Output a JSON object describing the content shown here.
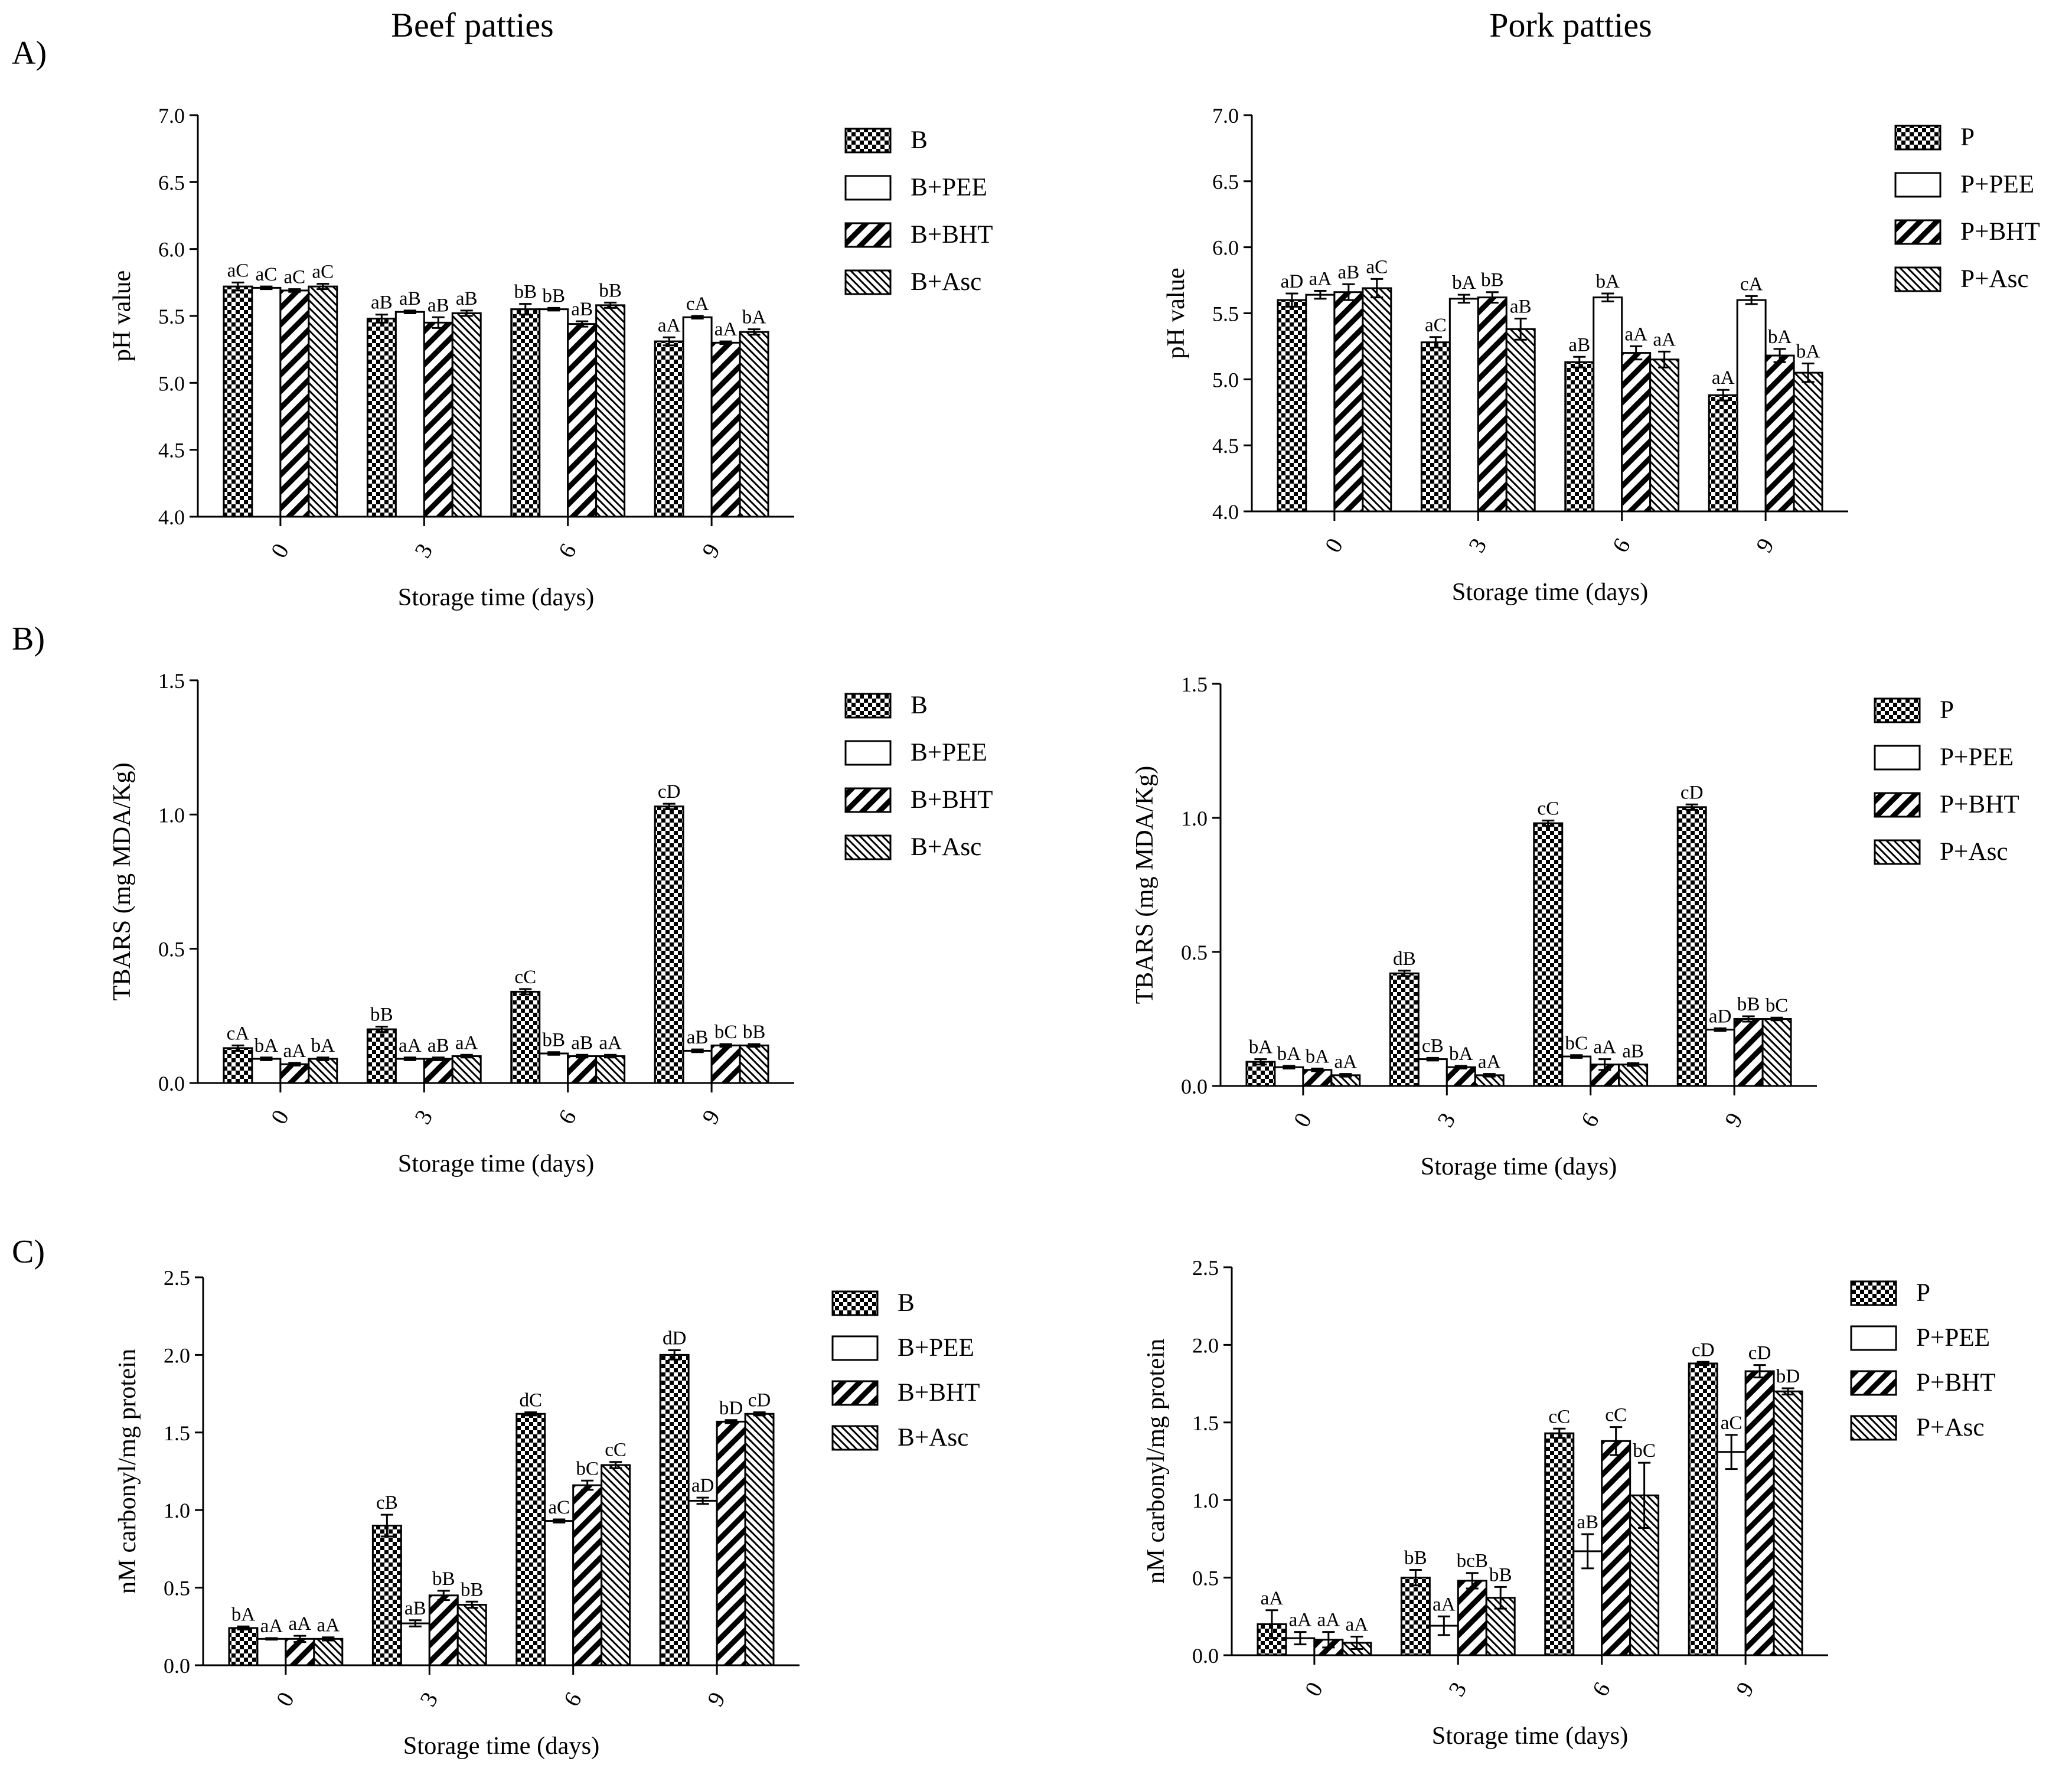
{
  "panel_labels": [
    "A)",
    "B)",
    "C)"
  ],
  "column_titles": [
    "Beef patties",
    "Pork patties"
  ],
  "chart_data": [
    {
      "id": "A-beef",
      "type": "bar",
      "title": "",
      "xlabel": "Storage time (days)",
      "ylabel": "pH value",
      "ylim": [
        4.0,
        7.0
      ],
      "yticks": [
        "4.0",
        "4.5",
        "5.0",
        "5.5",
        "6.0",
        "6.5",
        "7.0"
      ],
      "categories": [
        "0",
        "3",
        "6",
        "9"
      ],
      "series": [
        {
          "name": "B",
          "values": [
            5.72,
            5.48,
            5.55,
            5.31
          ],
          "errors": [
            0.03,
            0.03,
            0.04,
            0.03
          ],
          "labels": [
            "aC",
            "aB",
            "bB",
            "aA"
          ]
        },
        {
          "name": "B+PEE",
          "values": [
            5.71,
            5.53,
            5.55,
            5.49
          ],
          "errors": [
            0.01,
            0.01,
            0.01,
            0.01
          ],
          "labels": [
            "aC",
            "aB",
            "bB",
            "cA"
          ]
        },
        {
          "name": "B+BHT",
          "values": [
            5.69,
            5.45,
            5.44,
            5.3
          ],
          "errors": [
            0.01,
            0.04,
            0.02,
            0.01
          ],
          "labels": [
            "aC",
            "aB",
            "aB",
            "aA"
          ]
        },
        {
          "name": "B+Asc",
          "values": [
            5.72,
            5.52,
            5.58,
            5.38
          ],
          "errors": [
            0.02,
            0.02,
            0.02,
            0.02
          ],
          "labels": [
            "aC",
            "aB",
            "bB",
            "bA"
          ]
        }
      ]
    },
    {
      "id": "A-pork",
      "type": "bar",
      "title": "",
      "xlabel": "Storage time (days)",
      "ylabel": "pH value",
      "ylim": [
        4.0,
        7.0
      ],
      "yticks": [
        "4.0",
        "4.5",
        "5.0",
        "5.5",
        "6.0",
        "6.5",
        "7.0"
      ],
      "categories": [
        "0",
        "3",
        "6",
        "9"
      ],
      "series": [
        {
          "name": "P",
          "values": [
            5.6,
            5.28,
            5.13,
            4.88
          ],
          "errors": [
            0.05,
            0.04,
            0.04,
            0.04
          ],
          "labels": [
            "aD",
            "aC",
            "aB",
            "aA"
          ]
        },
        {
          "name": "P+PEE",
          "values": [
            5.64,
            5.61,
            5.62,
            5.6
          ],
          "errors": [
            0.03,
            0.03,
            0.03,
            0.03
          ],
          "labels": [
            "aA",
            "bA",
            "bA",
            "cA"
          ]
        },
        {
          "name": "P+BHT",
          "values": [
            5.66,
            5.62,
            5.2,
            5.18
          ],
          "errors": [
            0.06,
            0.04,
            0.05,
            0.05
          ],
          "labels": [
            "aB",
            "bB",
            "aA",
            "bA"
          ]
        },
        {
          "name": "P+Asc",
          "values": [
            5.69,
            5.38,
            5.15,
            5.05
          ],
          "errors": [
            0.07,
            0.08,
            0.06,
            0.07
          ],
          "labels": [
            "aC",
            "aB",
            "aA",
            "bA"
          ]
        }
      ]
    },
    {
      "id": "B-beef",
      "type": "bar",
      "title": "",
      "xlabel": "Storage time (days)",
      "ylabel": "TBARS (mg MDA/Kg)",
      "ylim": [
        0.0,
        1.5
      ],
      "yticks": [
        "0.0",
        "0.5",
        "1.0",
        "1.5"
      ],
      "categories": [
        "0",
        "3",
        "6",
        "9"
      ],
      "series": [
        {
          "name": "B",
          "values": [
            0.13,
            0.2,
            0.34,
            1.03
          ],
          "errors": [
            0.01,
            0.01,
            0.01,
            0.01
          ],
          "labels": [
            "cA",
            "bB",
            "cC",
            "cD"
          ]
        },
        {
          "name": "B+PEE",
          "values": [
            0.09,
            0.09,
            0.11,
            0.12
          ],
          "errors": [
            0.005,
            0.005,
            0.005,
            0.005
          ],
          "labels": [
            "bA",
            "aA",
            "bB",
            "aB"
          ]
        },
        {
          "name": "B+BHT",
          "values": [
            0.07,
            0.09,
            0.1,
            0.14
          ],
          "errors": [
            0.005,
            0.005,
            0.005,
            0.005
          ],
          "labels": [
            "aA",
            "aB",
            "aB",
            "bC"
          ]
        },
        {
          "name": "B+Asc",
          "values": [
            0.09,
            0.1,
            0.1,
            0.14
          ],
          "errors": [
            0.005,
            0.005,
            0.005,
            0.005
          ],
          "labels": [
            "bA",
            "aA",
            "aA",
            "bB"
          ]
        }
      ]
    },
    {
      "id": "B-pork",
      "type": "bar",
      "title": "",
      "xlabel": "Storage time (days)",
      "ylabel": "TBARS (mg MDA/Kg)",
      "ylim": [
        0.0,
        1.5
      ],
      "yticks": [
        "0.0",
        "0.5",
        "1.0",
        "1.5"
      ],
      "categories": [
        "0",
        "3",
        "6",
        "9"
      ],
      "series": [
        {
          "name": "P",
          "values": [
            0.09,
            0.42,
            0.98,
            1.04
          ],
          "errors": [
            0.01,
            0.01,
            0.01,
            0.01
          ],
          "labels": [
            "bA",
            "dB",
            "cC",
            "cD"
          ]
        },
        {
          "name": "P+PEE",
          "values": [
            0.07,
            0.1,
            0.11,
            0.21
          ],
          "errors": [
            0.005,
            0.005,
            0.005,
            0.005
          ],
          "labels": [
            "bA",
            "cB",
            "bC",
            "aD"
          ]
        },
        {
          "name": "P+BHT",
          "values": [
            0.06,
            0.07,
            0.08,
            0.25
          ],
          "errors": [
            0.005,
            0.005,
            0.02,
            0.01
          ],
          "labels": [
            "bA",
            "bA",
            "aA",
            "bB"
          ]
        },
        {
          "name": "P+Asc",
          "values": [
            0.04,
            0.04,
            0.08,
            0.25
          ],
          "errors": [
            0.005,
            0.005,
            0.005,
            0.005
          ],
          "labels": [
            "aA",
            "aA",
            "aB",
            "bC"
          ]
        }
      ]
    },
    {
      "id": "C-beef",
      "type": "bar",
      "title": "",
      "xlabel": "Storage time (days)",
      "ylabel": "nM carbonyl/mg protein",
      "ylim": [
        0.0,
        2.5
      ],
      "yticks": [
        "0.0",
        "0.5",
        "1.0",
        "1.5",
        "2.0",
        "2.5"
      ],
      "categories": [
        "0",
        "3",
        "6",
        "9"
      ],
      "series": [
        {
          "name": "B",
          "values": [
            0.24,
            0.9,
            1.62,
            2.0
          ],
          "errors": [
            0.01,
            0.07,
            0.01,
            0.03
          ],
          "labels": [
            "bA",
            "cB",
            "dC",
            "dD"
          ]
        },
        {
          "name": "B+PEE",
          "values": [
            0.17,
            0.27,
            0.93,
            1.06
          ],
          "errors": [
            0.005,
            0.02,
            0.01,
            0.02
          ],
          "labels": [
            "aA",
            "aB",
            "aC",
            "aD"
          ]
        },
        {
          "name": "B+BHT",
          "values": [
            0.17,
            0.45,
            1.16,
            1.57
          ],
          "errors": [
            0.02,
            0.03,
            0.03,
            0.01
          ],
          "labels": [
            "aA",
            "bB",
            "bC",
            "bD"
          ]
        },
        {
          "name": "B+Asc",
          "values": [
            0.17,
            0.39,
            1.29,
            1.62
          ],
          "errors": [
            0.01,
            0.02,
            0.02,
            0.01
          ],
          "labels": [
            "aA",
            "bB",
            "cC",
            "cD"
          ]
        }
      ]
    },
    {
      "id": "C-pork",
      "type": "bar",
      "title": "",
      "xlabel": "Storage time (days)",
      "ylabel": "nM carbonyl/mg protein",
      "ylim": [
        0.0,
        2.5
      ],
      "yticks": [
        "0.0",
        "0.5",
        "1.0",
        "1.5",
        "2.0",
        "2.5"
      ],
      "categories": [
        "0",
        "3",
        "6",
        "9"
      ],
      "series": [
        {
          "name": "P",
          "values": [
            0.2,
            0.5,
            1.43,
            1.88
          ],
          "errors": [
            0.09,
            0.05,
            0.03,
            0.01
          ],
          "labels": [
            "aA",
            "bB",
            "cC",
            "cD"
          ]
        },
        {
          "name": "P+PEE",
          "values": [
            0.11,
            0.19,
            0.67,
            1.31
          ],
          "errors": [
            0.04,
            0.06,
            0.11,
            0.11
          ],
          "labels": [
            "aA",
            "aA",
            "aB",
            "aC"
          ]
        },
        {
          "name": "P+BHT",
          "values": [
            0.1,
            0.48,
            1.38,
            1.83
          ],
          "errors": [
            0.05,
            0.05,
            0.09,
            0.04
          ],
          "labels": [
            "aA",
            "bcB",
            "cC",
            "cD"
          ]
        },
        {
          "name": "P+Asc",
          "values": [
            0.08,
            0.37,
            1.03,
            1.7
          ],
          "errors": [
            0.04,
            0.07,
            0.21,
            0.02
          ],
          "labels": [
            "aA",
            "bB",
            "bC",
            "bD"
          ]
        }
      ]
    }
  ]
}
